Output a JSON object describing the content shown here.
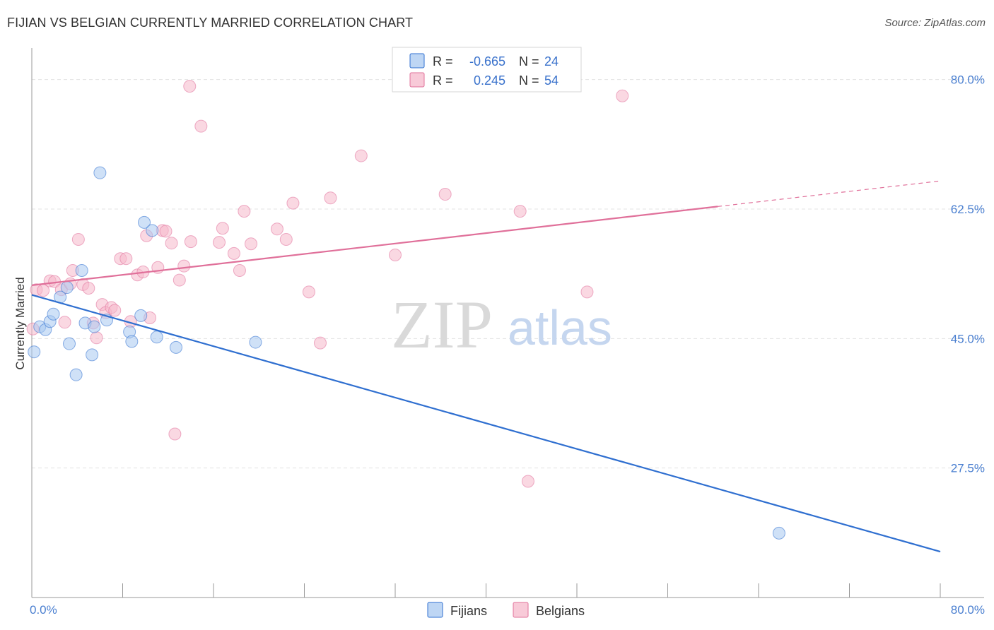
{
  "header": {
    "title": "FIJIAN VS BELGIAN CURRENTLY MARRIED CORRELATION CHART",
    "source": "Source: ZipAtlas.com"
  },
  "watermark": {
    "zip": "ZIP",
    "atlas": "atlas"
  },
  "colors": {
    "fijians_fill": "#a8c8f0",
    "fijians_line": "#2f6fd0",
    "belgians_fill": "#f5b8cb",
    "belgians_line": "#e0709a",
    "tick_text": "#4a7fd0",
    "grid": "#e3e3e3"
  },
  "legend": {
    "r_label": "R =",
    "n_label": "N =",
    "fijians": {
      "r": "-0.665",
      "n": "24"
    },
    "belgians": {
      "r": "0.245",
      "n": "54"
    }
  },
  "chart_data": {
    "type": "scatter",
    "title": "FIJIAN VS BELGIAN CURRENTLY MARRIED CORRELATION CHART",
    "xlabel": "",
    "ylabel": "Currently Married",
    "xlim": [
      0,
      80
    ],
    "ylim": [
      10,
      83.5
    ],
    "x_ticks": [
      0,
      80
    ],
    "x_tick_labels": [
      "0.0%",
      "80.0%"
    ],
    "y_ticks": [
      27.5,
      45.0,
      62.5,
      80.0
    ],
    "y_tick_labels": [
      "27.5%",
      "45.0%",
      "62.5%",
      "80.0%"
    ],
    "grid": true,
    "legend_position": "top-center",
    "series": [
      {
        "name": "Fijians",
        "color": "#a8c8f0",
        "r": -0.665,
        "n": 24,
        "points": [
          [
            0.2,
            43.2
          ],
          [
            0.7,
            46.6
          ],
          [
            1.2,
            46.2
          ],
          [
            1.6,
            47.3
          ],
          [
            1.9,
            48.3
          ],
          [
            2.5,
            50.6
          ],
          [
            3.1,
            51.9
          ],
          [
            3.3,
            44.3
          ],
          [
            3.9,
            40.1
          ],
          [
            4.4,
            54.2
          ],
          [
            4.7,
            47.1
          ],
          [
            5.3,
            42.8
          ],
          [
            5.5,
            46.6
          ],
          [
            6.0,
            67.4
          ],
          [
            6.6,
            47.5
          ],
          [
            8.6,
            45.9
          ],
          [
            8.8,
            44.6
          ],
          [
            9.6,
            48.1
          ],
          [
            9.9,
            60.7
          ],
          [
            10.6,
            59.6
          ],
          [
            11.0,
            45.2
          ],
          [
            12.7,
            43.8
          ],
          [
            19.7,
            44.5
          ],
          [
            65.8,
            18.7
          ]
        ],
        "trend": {
          "x": [
            0,
            80
          ],
          "y": [
            50.9,
            16.2
          ],
          "dashed_from": null
        }
      },
      {
        "name": "Belgians",
        "color": "#f5b8cb",
        "r": 0.245,
        "n": 54,
        "points": [
          [
            0.1,
            46.3
          ],
          [
            0.4,
            51.6
          ],
          [
            1.0,
            51.5
          ],
          [
            1.6,
            52.8
          ],
          [
            2.0,
            52.7
          ],
          [
            2.6,
            51.6
          ],
          [
            2.9,
            47.2
          ],
          [
            3.4,
            52.4
          ],
          [
            3.6,
            54.2
          ],
          [
            4.1,
            58.4
          ],
          [
            4.5,
            52.3
          ],
          [
            5.0,
            51.8
          ],
          [
            5.4,
            47.1
          ],
          [
            5.7,
            45.1
          ],
          [
            6.2,
            49.6
          ],
          [
            6.5,
            48.5
          ],
          [
            7.0,
            49.2
          ],
          [
            7.3,
            48.8
          ],
          [
            7.8,
            55.8
          ],
          [
            8.3,
            55.8
          ],
          [
            8.7,
            47.3
          ],
          [
            9.3,
            53.6
          ],
          [
            9.8,
            54.0
          ],
          [
            10.1,
            58.9
          ],
          [
            10.4,
            47.8
          ],
          [
            11.1,
            54.6
          ],
          [
            11.5,
            59.6
          ],
          [
            11.8,
            59.5
          ],
          [
            12.3,
            57.9
          ],
          [
            12.6,
            32.1
          ],
          [
            13.0,
            52.9
          ],
          [
            13.4,
            54.8
          ],
          [
            13.9,
            79.1
          ],
          [
            14.0,
            58.1
          ],
          [
            14.9,
            73.7
          ],
          [
            16.5,
            58.0
          ],
          [
            16.8,
            59.9
          ],
          [
            17.8,
            56.5
          ],
          [
            18.3,
            54.2
          ],
          [
            18.7,
            62.2
          ],
          [
            19.3,
            57.8
          ],
          [
            21.6,
            59.8
          ],
          [
            22.4,
            58.4
          ],
          [
            23.0,
            63.3
          ],
          [
            24.4,
            51.3
          ],
          [
            25.4,
            44.4
          ],
          [
            26.3,
            64.0
          ],
          [
            29.0,
            69.7
          ],
          [
            32.0,
            56.3
          ],
          [
            36.4,
            64.5
          ],
          [
            43.0,
            62.2
          ],
          [
            43.7,
            25.7
          ],
          [
            48.9,
            51.3
          ],
          [
            52.0,
            77.8
          ]
        ],
        "trend": {
          "x": [
            0,
            80
          ],
          "y": [
            52.2,
            66.3
          ],
          "dashed_from": 60.4
        }
      }
    ]
  },
  "bottom_legend": {
    "fijians": "Fijians",
    "belgians": "Belgians"
  }
}
